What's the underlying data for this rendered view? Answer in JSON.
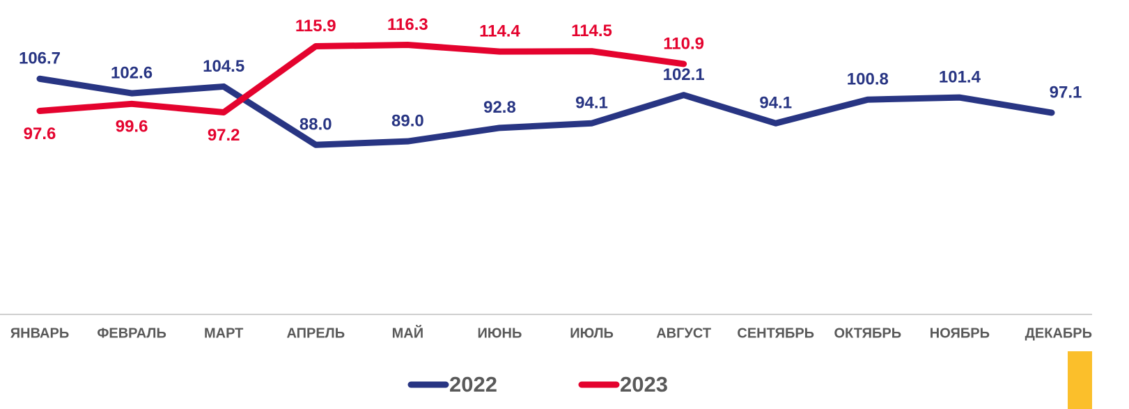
{
  "chart_data": {
    "type": "line",
    "categories": [
      "ЯНВАРЬ",
      "ФЕВРАЛЬ",
      "МАРТ",
      "АПРЕЛЬ",
      "МАЙ",
      "ИЮНЬ",
      "ИЮЛЬ",
      "АВГУСТ",
      "СЕНТЯБРЬ",
      "ОКТЯБРЬ",
      "НОЯБРЬ",
      "ДЕКАБРЬ"
    ],
    "series": [
      {
        "name": "2022",
        "color": "#283583",
        "values": [
          106.7,
          102.6,
          104.5,
          88.0,
          89.0,
          92.8,
          94.1,
          102.1,
          94.1,
          100.8,
          101.4,
          97.1
        ],
        "value_labels": [
          "106.7",
          "102.6",
          "104.5",
          "88.0",
          "89.0",
          "92.8",
          "94.1",
          "102.1",
          "94.1",
          "100.8",
          "101.4",
          "97.1"
        ]
      },
      {
        "name": "2023",
        "color": "#e4032e",
        "values": [
          97.6,
          99.6,
          97.2,
          115.9,
          116.3,
          114.4,
          114.5,
          110.9,
          null,
          null,
          null,
          null
        ],
        "value_labels": [
          "97.6",
          "99.6",
          "97.2",
          "115.9",
          "116.3",
          "114.4",
          "114.5",
          "110.9",
          null,
          null,
          null,
          null
        ]
      }
    ],
    "ylim": [
      40,
      129
    ],
    "legend": "bottom"
  }
}
